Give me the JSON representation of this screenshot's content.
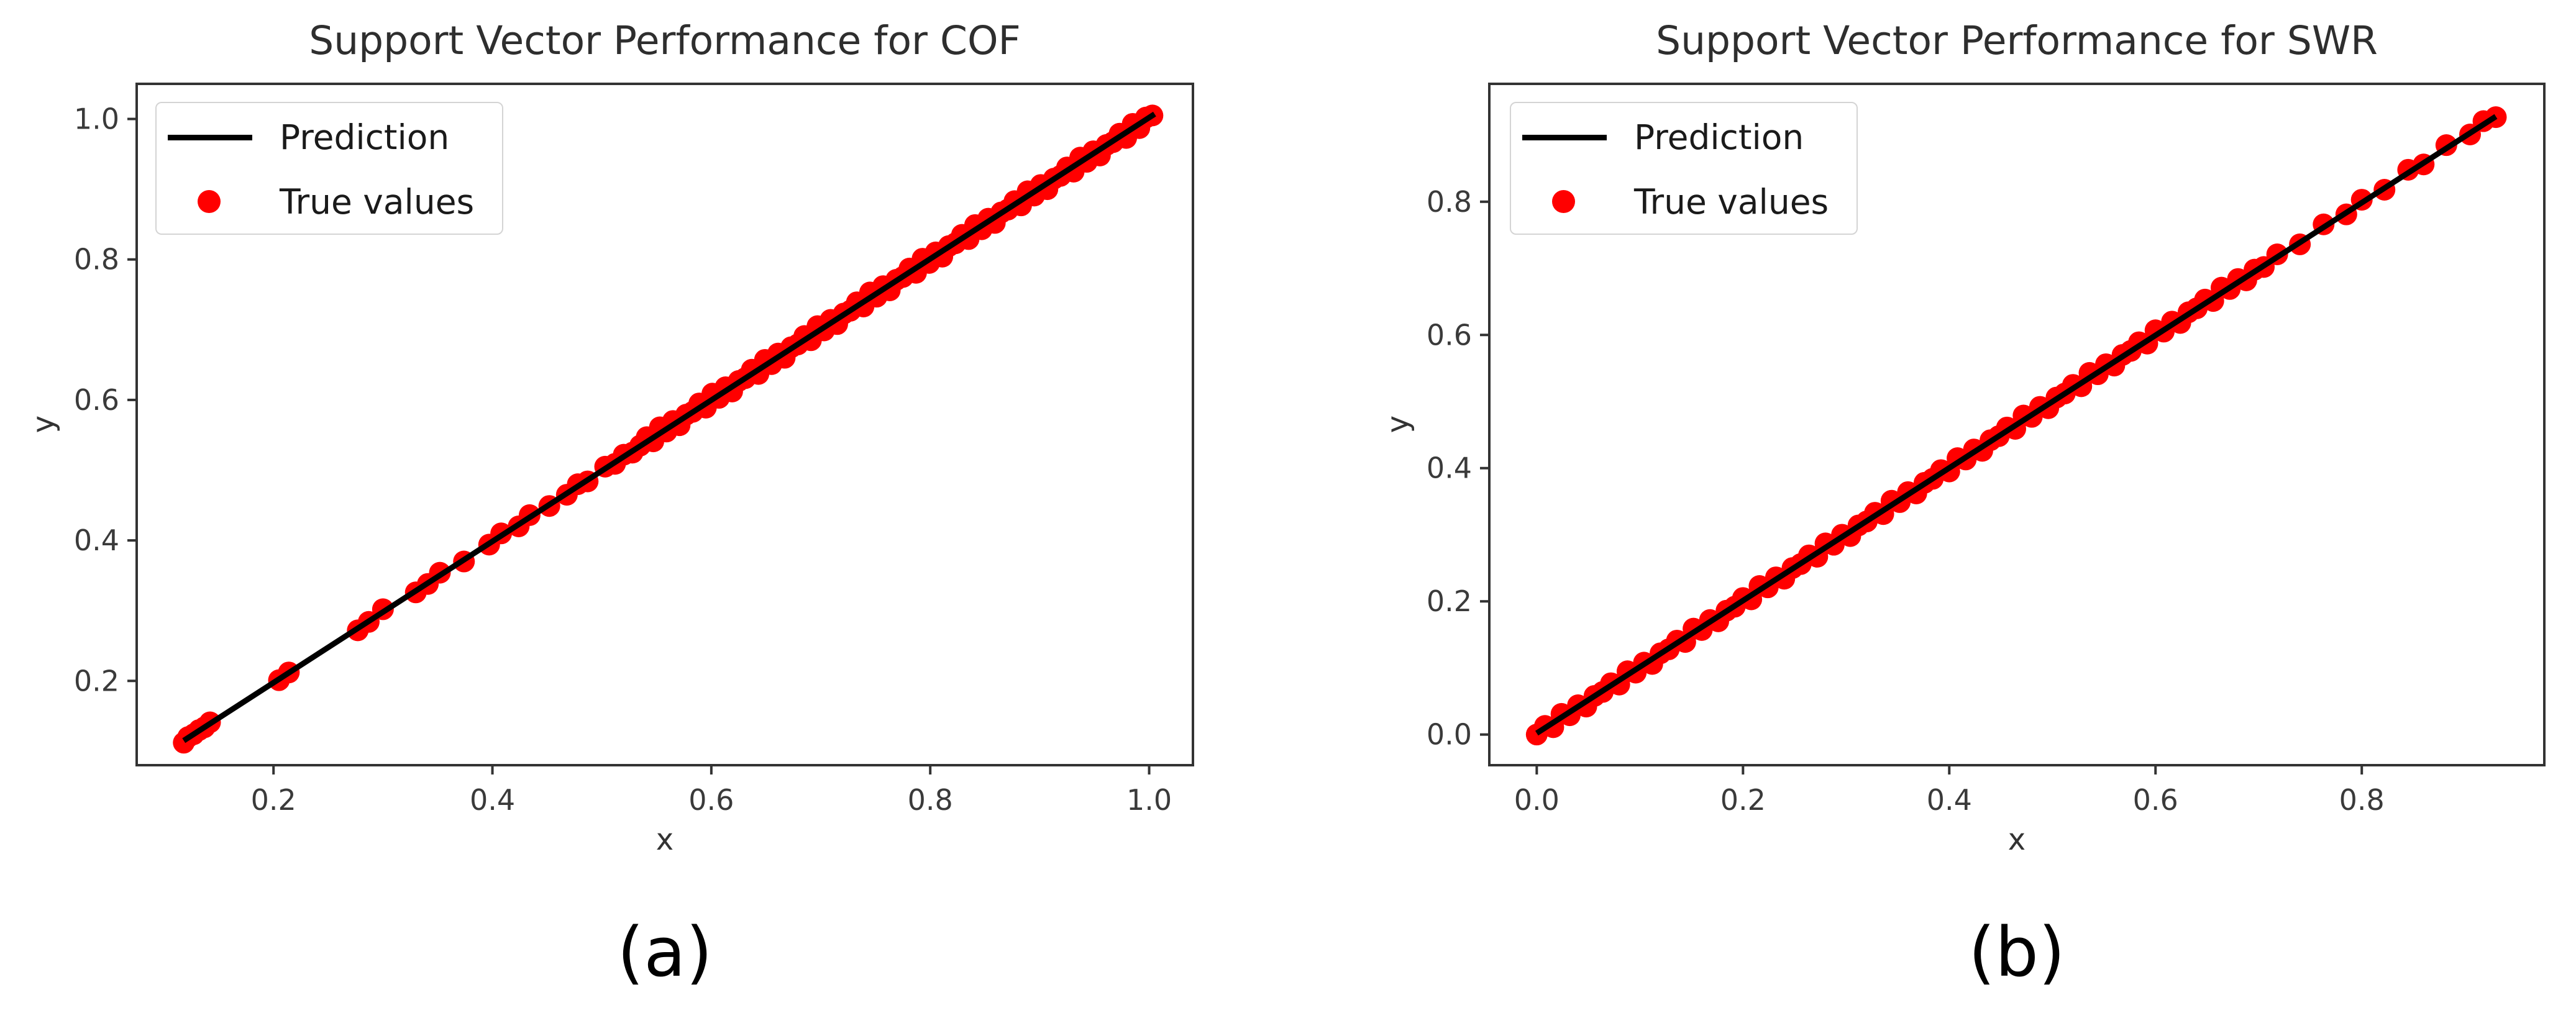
{
  "page": {
    "background": "#ffffff"
  },
  "colors": {
    "prediction_line": "#000000",
    "true_values_marker": "#ff0000",
    "axis_frame": "#333333",
    "tick_label": "#3a3a3a",
    "title_text": "#2e2e2e",
    "legend_border": "#d4d4d4",
    "caption_text": "#000000"
  },
  "chart_data": [
    {
      "id": "cof",
      "type": "scatter",
      "title": "Support Vector Performance for COF",
      "xlabel": "x",
      "ylabel": "y",
      "caption": "(a)",
      "grid": false,
      "legend": {
        "position": "upper-left",
        "entries": [
          {
            "label": "Prediction",
            "marker": "line",
            "color": "#000000"
          },
          {
            "label": "True values",
            "marker": "dot",
            "color": "#ff0000"
          }
        ]
      },
      "xlim": [
        0.075,
        1.04
      ],
      "ylim": [
        0.08,
        1.05
      ],
      "xticks": [
        0.2,
        0.4,
        0.6,
        0.8,
        1.0
      ],
      "xtick_labels": [
        "0.2",
        "0.4",
        "0.6",
        "0.8",
        "1.0"
      ],
      "yticks": [
        0.2,
        0.4,
        0.6,
        0.8,
        1.0
      ],
      "ytick_labels": [
        "0.2",
        "0.4",
        "0.6",
        "0.8",
        "1.0"
      ],
      "series": [
        {
          "name": "True values",
          "type": "scatter",
          "color": "#ff0000",
          "points": [
            [
              0.118,
              0.112
            ],
            [
              0.122,
              0.12
            ],
            [
              0.127,
              0.124
            ],
            [
              0.132,
              0.13
            ],
            [
              0.137,
              0.134
            ],
            [
              0.142,
              0.141
            ],
            [
              0.205,
              0.201
            ],
            [
              0.214,
              0.212
            ],
            [
              0.277,
              0.272
            ],
            [
              0.287,
              0.284
            ],
            [
              0.3,
              0.302
            ],
            [
              0.33,
              0.326
            ],
            [
              0.341,
              0.338
            ],
            [
              0.352,
              0.354
            ],
            [
              0.374,
              0.37
            ],
            [
              0.397,
              0.394
            ],
            [
              0.408,
              0.41
            ],
            [
              0.424,
              0.42
            ],
            [
              0.434,
              0.436
            ],
            [
              0.452,
              0.449
            ],
            [
              0.468,
              0.465
            ],
            [
              0.478,
              0.48
            ],
            [
              0.487,
              0.484
            ],
            [
              0.503,
              0.505
            ],
            [
              0.512,
              0.509
            ],
            [
              0.52,
              0.522
            ],
            [
              0.528,
              0.525
            ],
            [
              0.535,
              0.535
            ],
            [
              0.541,
              0.547
            ],
            [
              0.547,
              0.541
            ],
            [
              0.553,
              0.561
            ],
            [
              0.559,
              0.555
            ],
            [
              0.565,
              0.57
            ],
            [
              0.571,
              0.564
            ],
            [
              0.577,
              0.579
            ],
            [
              0.583,
              0.583
            ],
            [
              0.589,
              0.595
            ],
            [
              0.595,
              0.589
            ],
            [
              0.601,
              0.609
            ],
            [
              0.607,
              0.603
            ],
            [
              0.613,
              0.618
            ],
            [
              0.619,
              0.612
            ],
            [
              0.625,
              0.627
            ],
            [
              0.631,
              0.631
            ],
            [
              0.637,
              0.643
            ],
            [
              0.643,
              0.637
            ],
            [
              0.649,
              0.657
            ],
            [
              0.655,
              0.651
            ],
            [
              0.661,
              0.666
            ],
            [
              0.667,
              0.66
            ],
            [
              0.673,
              0.675
            ],
            [
              0.679,
              0.679
            ],
            [
              0.685,
              0.691
            ],
            [
              0.691,
              0.685
            ],
            [
              0.697,
              0.705
            ],
            [
              0.703,
              0.699
            ],
            [
              0.709,
              0.714
            ],
            [
              0.715,
              0.708
            ],
            [
              0.721,
              0.723
            ],
            [
              0.727,
              0.727
            ],
            [
              0.733,
              0.739
            ],
            [
              0.739,
              0.733
            ],
            [
              0.745,
              0.753
            ],
            [
              0.751,
              0.747
            ],
            [
              0.757,
              0.762
            ],
            [
              0.763,
              0.756
            ],
            [
              0.769,
              0.771
            ],
            [
              0.775,
              0.775
            ],
            [
              0.781,
              0.787
            ],
            [
              0.787,
              0.781
            ],
            [
              0.793,
              0.801
            ],
            [
              0.799,
              0.795
            ],
            [
              0.805,
              0.81
            ],
            [
              0.811,
              0.804
            ],
            [
              0.817,
              0.819
            ],
            [
              0.823,
              0.823
            ],
            [
              0.829,
              0.835
            ],
            [
              0.835,
              0.829
            ],
            [
              0.841,
              0.849
            ],
            [
              0.847,
              0.843
            ],
            [
              0.853,
              0.858
            ],
            [
              0.859,
              0.852
            ],
            [
              0.865,
              0.867
            ],
            [
              0.871,
              0.871
            ],
            [
              0.877,
              0.883
            ],
            [
              0.883,
              0.877
            ],
            [
              0.889,
              0.897
            ],
            [
              0.895,
              0.891
            ],
            [
              0.901,
              0.906
            ],
            [
              0.907,
              0.9
            ],
            [
              0.913,
              0.915
            ],
            [
              0.919,
              0.919
            ],
            [
              0.925,
              0.931
            ],
            [
              0.931,
              0.925
            ],
            [
              0.937,
              0.945
            ],
            [
              0.943,
              0.939
            ],
            [
              0.949,
              0.954
            ],
            [
              0.955,
              0.948
            ],
            [
              0.961,
              0.963
            ],
            [
              0.967,
              0.967
            ],
            [
              0.973,
              0.979
            ],
            [
              0.979,
              0.973
            ],
            [
              0.985,
              0.993
            ],
            [
              0.991,
              0.987
            ],
            [
              0.997,
              1.002
            ],
            [
              1.003,
              1.005
            ]
          ]
        },
        {
          "name": "Prediction",
          "type": "line",
          "color": "#000000",
          "points": [
            [
              0.118,
              0.115
            ],
            [
              1.005,
              1.007
            ]
          ]
        }
      ]
    },
    {
      "id": "swr",
      "type": "scatter",
      "title": "Support Vector Performance for SWR",
      "xlabel": "x",
      "ylabel": "y",
      "caption": "(b)",
      "grid": false,
      "legend": {
        "position": "upper-left",
        "entries": [
          {
            "label": "Prediction",
            "marker": "line",
            "color": "#000000"
          },
          {
            "label": "True values",
            "marker": "dot",
            "color": "#ff0000"
          }
        ]
      },
      "xlim": [
        -0.046,
        0.977
      ],
      "ylim": [
        -0.046,
        0.977
      ],
      "xticks": [
        0.0,
        0.2,
        0.4,
        0.6,
        0.8
      ],
      "xtick_labels": [
        "0.0",
        "0.2",
        "0.4",
        "0.6",
        "0.8"
      ],
      "yticks": [
        0.0,
        0.2,
        0.4,
        0.6,
        0.8
      ],
      "ytick_labels": [
        "0.0",
        "0.2",
        "0.4",
        "0.6",
        "0.8"
      ],
      "series": [
        {
          "name": "True values",
          "type": "scatter",
          "color": "#ff0000",
          "points": [
            [
              0.0,
              0.0
            ],
            [
              0.008,
              0.013
            ],
            [
              0.016,
              0.011
            ],
            [
              0.024,
              0.031
            ],
            [
              0.032,
              0.029
            ],
            [
              0.04,
              0.044
            ],
            [
              0.048,
              0.042
            ],
            [
              0.056,
              0.058
            ],
            [
              0.064,
              0.064
            ],
            [
              0.072,
              0.077
            ],
            [
              0.08,
              0.075
            ],
            [
              0.088,
              0.095
            ],
            [
              0.096,
              0.093
            ],
            [
              0.104,
              0.108
            ],
            [
              0.112,
              0.106
            ],
            [
              0.12,
              0.122
            ],
            [
              0.128,
              0.128
            ],
            [
              0.136,
              0.141
            ],
            [
              0.144,
              0.139
            ],
            [
              0.152,
              0.159
            ],
            [
              0.16,
              0.157
            ],
            [
              0.168,
              0.172
            ],
            [
              0.176,
              0.17
            ],
            [
              0.184,
              0.186
            ],
            [
              0.192,
              0.192
            ],
            [
              0.2,
              0.205
            ],
            [
              0.208,
              0.203
            ],
            [
              0.216,
              0.223
            ],
            [
              0.224,
              0.221
            ],
            [
              0.232,
              0.236
            ],
            [
              0.24,
              0.234
            ],
            [
              0.248,
              0.25
            ],
            [
              0.256,
              0.256
            ],
            [
              0.264,
              0.269
            ],
            [
              0.272,
              0.267
            ],
            [
              0.28,
              0.287
            ],
            [
              0.288,
              0.285
            ],
            [
              0.296,
              0.3
            ],
            [
              0.304,
              0.298
            ],
            [
              0.312,
              0.314
            ],
            [
              0.32,
              0.32
            ],
            [
              0.328,
              0.333
            ],
            [
              0.336,
              0.331
            ],
            [
              0.344,
              0.351
            ],
            [
              0.352,
              0.349
            ],
            [
              0.36,
              0.364
            ],
            [
              0.368,
              0.362
            ],
            [
              0.376,
              0.378
            ],
            [
              0.384,
              0.384
            ],
            [
              0.392,
              0.397
            ],
            [
              0.4,
              0.395
            ],
            [
              0.408,
              0.415
            ],
            [
              0.416,
              0.413
            ],
            [
              0.424,
              0.428
            ],
            [
              0.432,
              0.426
            ],
            [
              0.44,
              0.442
            ],
            [
              0.448,
              0.448
            ],
            [
              0.456,
              0.461
            ],
            [
              0.464,
              0.459
            ],
            [
              0.472,
              0.479
            ],
            [
              0.48,
              0.477
            ],
            [
              0.488,
              0.492
            ],
            [
              0.496,
              0.49
            ],
            [
              0.504,
              0.506
            ],
            [
              0.512,
              0.512
            ],
            [
              0.52,
              0.525
            ],
            [
              0.528,
              0.523
            ],
            [
              0.536,
              0.543
            ],
            [
              0.544,
              0.541
            ],
            [
              0.552,
              0.556
            ],
            [
              0.56,
              0.554
            ],
            [
              0.568,
              0.57
            ],
            [
              0.576,
              0.576
            ],
            [
              0.584,
              0.589
            ],
            [
              0.592,
              0.587
            ],
            [
              0.6,
              0.607
            ],
            [
              0.608,
              0.605
            ],
            [
              0.616,
              0.62
            ],
            [
              0.624,
              0.618
            ],
            [
              0.632,
              0.634
            ],
            [
              0.64,
              0.64
            ],
            [
              0.648,
              0.653
            ],
            [
              0.656,
              0.651
            ],
            [
              0.664,
              0.671
            ],
            [
              0.672,
              0.669
            ],
            [
              0.68,
              0.684
            ],
            [
              0.688,
              0.682
            ],
            [
              0.696,
              0.698
            ],
            [
              0.705,
              0.702
            ],
            [
              0.718,
              0.721
            ],
            [
              0.74,
              0.736
            ],
            [
              0.763,
              0.766
            ],
            [
              0.785,
              0.781
            ],
            [
              0.8,
              0.803
            ],
            [
              0.822,
              0.818
            ],
            [
              0.845,
              0.848
            ],
            [
              0.86,
              0.856
            ],
            [
              0.882,
              0.885
            ],
            [
              0.905,
              0.901
            ],
            [
              0.918,
              0.921
            ],
            [
              0.93,
              0.927
            ]
          ]
        },
        {
          "name": "Prediction",
          "type": "line",
          "color": "#000000",
          "points": [
            [
              0.0,
              0.002
            ],
            [
              0.93,
              0.928
            ]
          ]
        }
      ]
    }
  ]
}
